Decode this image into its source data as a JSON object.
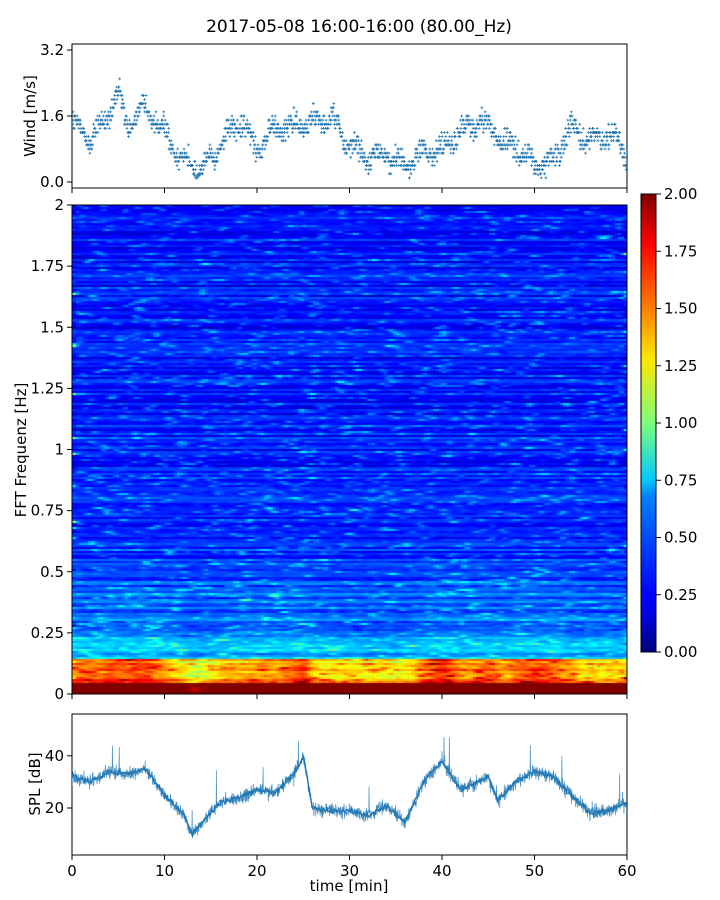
{
  "title": "2017-05-08 16:00-16:00 (80.00_Hz)",
  "chart_data": [
    {
      "type": "scatter",
      "ylabel": "Wind [m/s]",
      "xlim": [
        0,
        60
      ],
      "ylim": [
        0,
        3.2
      ],
      "yticks": [
        "0.0",
        "1.6",
        "3.2"
      ],
      "color": "#1f77b4",
      "envelope": {
        "x": [
          0,
          2,
          4,
          5,
          6,
          8,
          10,
          12,
          14,
          16,
          18,
          20,
          22,
          24,
          26,
          28,
          30,
          32,
          34,
          36,
          38,
          40,
          42,
          44,
          46,
          48,
          50,
          52,
          54,
          56,
          58,
          60
        ],
        "y": [
          1.5,
          1.0,
          1.7,
          2.2,
          1.4,
          1.8,
          1.2,
          0.5,
          0.3,
          0.9,
          1.5,
          0.8,
          1.4,
          1.3,
          1.5,
          1.6,
          0.9,
          0.6,
          0.7,
          0.4,
          0.7,
          0.8,
          1.2,
          1.5,
          1.1,
          0.8,
          0.4,
          0.5,
          1.3,
          1.0,
          1.2,
          0.7
        ]
      }
    },
    {
      "type": "heatmap",
      "ylabel": "FFT Frequenz [Hz]",
      "xlim": [
        0,
        60
      ],
      "ylim": [
        0,
        2
      ],
      "yticks": [
        "0",
        "0.25",
        "0.5",
        "0.75",
        "1",
        "1.25",
        "1.5",
        "1.75",
        "2"
      ],
      "colormap": "jet",
      "colorbar": {
        "min": 0.0,
        "max": 2.0,
        "ticks": [
          "0.00",
          "0.25",
          "0.50",
          "0.75",
          "1.00",
          "1.25",
          "1.50",
          "1.75",
          "2.00"
        ]
      }
    },
    {
      "type": "area",
      "ylabel": "SPL [dB]",
      "xlabel": "time [min]",
      "xlim": [
        0,
        60
      ],
      "ylim": [
        2,
        56
      ],
      "xticks": [
        "0",
        "10",
        "20",
        "30",
        "40",
        "50",
        "60"
      ],
      "yticks": [
        "20",
        "40"
      ],
      "color": "#1f77b4",
      "envelope": {
        "x": [
          0,
          2,
          4,
          6,
          8,
          10,
          12,
          13,
          14,
          16,
          18,
          20,
          22,
          24,
          25,
          26,
          28,
          30,
          32,
          34,
          36,
          38,
          40,
          42,
          44,
          45,
          46,
          48,
          50,
          52,
          54,
          56,
          58,
          60
        ],
        "y": [
          32,
          30,
          34,
          33,
          35,
          25,
          18,
          10,
          14,
          22,
          24,
          27,
          26,
          33,
          40,
          20,
          19,
          19,
          17,
          21,
          14,
          30,
          38,
          27,
          30,
          32,
          23,
          30,
          34,
          32,
          25,
          18,
          19,
          22
        ]
      }
    }
  ]
}
